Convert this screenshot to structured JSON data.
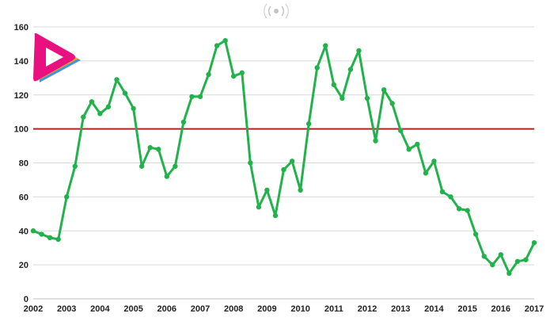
{
  "chart_data": {
    "type": "line",
    "title": "",
    "xlabel": "",
    "ylabel": "",
    "ylim": [
      0,
      160
    ],
    "yticks": [
      0,
      20,
      40,
      60,
      80,
      100,
      120,
      140,
      160
    ],
    "xlim": [
      2002,
      2017
    ],
    "xticks": [
      "2002",
      "2003",
      "2004",
      "2005",
      "2006",
      "2007",
      "2008",
      "2009",
      "2010",
      "2011",
      "2012",
      "2013",
      "2014",
      "2015",
      "2016",
      "2017"
    ],
    "grid": true,
    "legend": "none",
    "reference_line": {
      "y": 100,
      "color": "#b22222"
    },
    "series": [
      {
        "color": "#22b24c",
        "x": [
          2002.0,
          2002.25,
          2002.5,
          2002.75,
          2003.0,
          2003.25,
          2003.5,
          2003.75,
          2004.0,
          2004.25,
          2004.5,
          2004.75,
          2005.0,
          2005.25,
          2005.5,
          2005.75,
          2006.0,
          2006.25,
          2006.5,
          2006.75,
          2007.0,
          2007.25,
          2007.5,
          2007.75,
          2008.0,
          2008.25,
          2008.5,
          2008.75,
          2009.0,
          2009.25,
          2009.5,
          2009.75,
          2010.0,
          2010.25,
          2010.5,
          2010.75,
          2011.0,
          2011.25,
          2011.5,
          2011.75,
          2012.0,
          2012.25,
          2012.5,
          2012.75,
          2013.0,
          2013.25,
          2013.5,
          2013.75,
          2014.0,
          2014.25,
          2014.5,
          2014.75,
          2015.0,
          2015.25,
          2015.5,
          2015.75,
          2016.0,
          2016.25,
          2016.5,
          2016.75,
          2017.0
        ],
        "y": [
          40,
          38,
          36,
          35,
          60,
          78,
          107,
          116,
          109,
          113,
          129,
          121,
          112,
          78,
          89,
          88,
          72,
          78,
          104,
          119,
          119,
          132,
          149,
          152,
          131,
          133,
          80,
          54,
          64,
          49,
          76,
          81,
          64,
          103,
          136,
          149,
          126,
          118,
          135,
          146,
          118,
          93,
          123,
          115,
          99,
          88,
          91,
          74,
          81,
          63,
          60,
          53,
          52,
          38,
          25,
          20,
          26,
          15,
          22,
          23,
          33
        ]
      }
    ]
  },
  "logo": {
    "name": "play-logo-icon",
    "colors": [
      "#e8117f",
      "#f5a623",
      "#3b8fd6"
    ]
  },
  "watermark": {
    "name": "radio-wave-icon"
  }
}
